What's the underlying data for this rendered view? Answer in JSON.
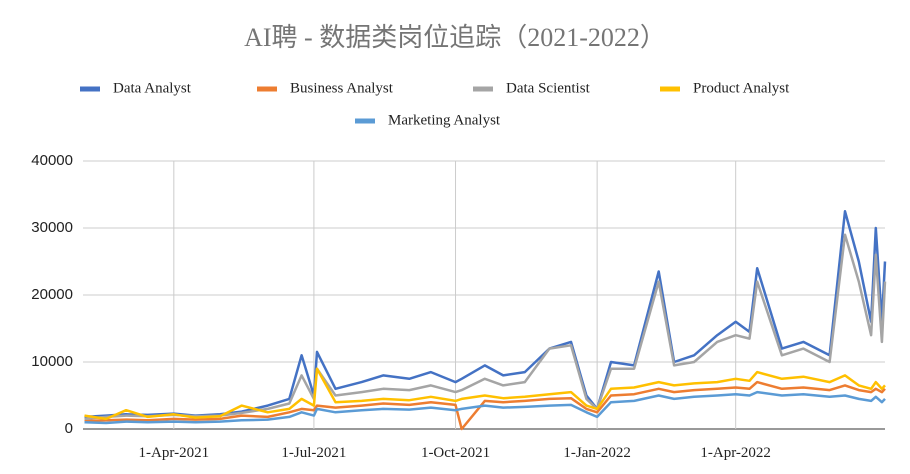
{
  "chart_data": {
    "type": "line",
    "title": "AI聘 - 数据类岗位追踪（2021-2022）",
    "x": [
      "2021-02-02",
      "2021-02-16",
      "2021-03-01",
      "2021-03-15",
      "2021-04-01",
      "2021-04-15",
      "2021-05-01",
      "2021-05-15",
      "2021-06-01",
      "2021-06-15",
      "2021-06-23",
      "2021-07-01",
      "2021-07-03",
      "2021-07-15",
      "2021-08-01",
      "2021-08-15",
      "2021-09-01",
      "2021-09-15",
      "2021-10-01",
      "2021-10-05",
      "2021-10-20",
      "2021-11-01",
      "2021-11-15",
      "2021-12-01",
      "2021-12-15",
      "2021-12-25",
      "2022-01-01",
      "2022-01-10",
      "2022-01-25",
      "2022-02-10",
      "2022-02-20",
      "2022-03-05",
      "2022-03-20",
      "2022-04-01",
      "2022-04-10",
      "2022-04-15",
      "2022-05-01",
      "2022-05-15",
      "2022-06-01",
      "2022-06-11",
      "2022-06-20",
      "2022-06-28",
      "2022-07-01",
      "2022-07-05",
      "2022-07-07"
    ],
    "series": [
      {
        "name": "Data Analyst",
        "color": "#4472c4",
        "values": [
          1800,
          2000,
          2200,
          2100,
          2300,
          2000,
          2200,
          2600,
          3500,
          4500,
          11000,
          5000,
          11500,
          6000,
          7000,
          8000,
          7500,
          8500,
          7000,
          7500,
          9500,
          8000,
          8500,
          12000,
          13000,
          5000,
          3000,
          10000,
          9500,
          23500,
          10000,
          11000,
          14000,
          16000,
          14500,
          24000,
          12000,
          13000,
          11000,
          32500,
          25000,
          16000,
          30000,
          16000,
          25000
        ]
      },
      {
        "name": "Business Analyst",
        "color": "#ed7d31",
        "values": [
          1200,
          1300,
          1400,
          1300,
          1500,
          1400,
          1500,
          2000,
          1800,
          2500,
          3000,
          2800,
          3500,
          3200,
          3500,
          3800,
          3600,
          4000,
          3600,
          0,
          4200,
          4000,
          4200,
          4500,
          4600,
          3000,
          2500,
          5000,
          5200,
          6000,
          5500,
          5800,
          6000,
          6200,
          6000,
          7000,
          6000,
          6200,
          5800,
          6500,
          5800,
          5500,
          6000,
          5500,
          6000
        ]
      },
      {
        "name": "Data Scientist",
        "color": "#a5a5a5",
        "values": [
          1500,
          1800,
          2000,
          1900,
          2100,
          1900,
          2000,
          2400,
          3000,
          3800,
          8000,
          4500,
          9000,
          5000,
          5500,
          6000,
          5800,
          6500,
          5500,
          5800,
          7500,
          6500,
          7000,
          12000,
          12500,
          4500,
          3000,
          9000,
          9000,
          22000,
          9500,
          10000,
          13000,
          14000,
          13500,
          22000,
          11000,
          12000,
          10000,
          29000,
          22000,
          14000,
          26000,
          13000,
          22000
        ]
      },
      {
        "name": "Product Analyst",
        "color": "#ffc000",
        "values": [
          2000,
          1500,
          2800,
          1800,
          2200,
          1700,
          1900,
          3500,
          2500,
          3000,
          4500,
          3500,
          9000,
          4000,
          4200,
          4500,
          4300,
          4800,
          4200,
          4500,
          5000,
          4600,
          4800,
          5200,
          5500,
          3500,
          3000,
          6000,
          6200,
          7000,
          6500,
          6800,
          7000,
          7500,
          7200,
          8500,
          7500,
          7800,
          7000,
          8000,
          6500,
          6000,
          7000,
          6000,
          6500
        ]
      },
      {
        "name": "Marketing Analyst",
        "color": "#5b9bd5",
        "values": [
          1000,
          900,
          1100,
          1000,
          1100,
          1000,
          1100,
          1300,
          1400,
          1800,
          2500,
          2000,
          3000,
          2500,
          2800,
          3000,
          2900,
          3200,
          2800,
          3000,
          3500,
          3200,
          3300,
          3500,
          3600,
          2500,
          1800,
          4000,
          4200,
          5000,
          4500,
          4800,
          5000,
          5200,
          5000,
          5500,
          5000,
          5200,
          4800,
          5000,
          4500,
          4200,
          4800,
          4000,
          4500
        ]
      }
    ],
    "xlim": [
      "2021-02-01",
      "2022-07-07"
    ],
    "xticks": [
      {
        "value": "2021-04-01",
        "label": "1-Apr-2021"
      },
      {
        "value": "2021-07-01",
        "label": "1-Jul-2021"
      },
      {
        "value": "2021-10-01",
        "label": "1-Oct-2021"
      },
      {
        "value": "2022-01-01",
        "label": "1-Jan-2022"
      },
      {
        "value": "2022-04-01",
        "label": "1-Apr-2022"
      }
    ],
    "ylim": [
      0,
      40000
    ],
    "yticks": [
      0,
      10000,
      20000,
      30000,
      40000
    ],
    "grid": true
  }
}
